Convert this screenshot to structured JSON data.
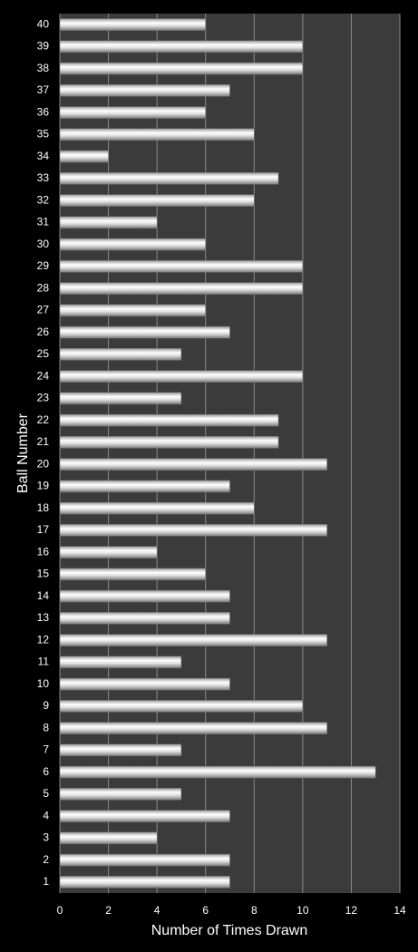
{
  "chart_data": {
    "type": "bar",
    "orientation": "horizontal",
    "x_label": "Number of Times Drawn",
    "y_label": "Ball Number",
    "categories": [
      "1",
      "2",
      "3",
      "4",
      "5",
      "6",
      "7",
      "8",
      "9",
      "10",
      "11",
      "12",
      "13",
      "14",
      "15",
      "16",
      "17",
      "18",
      "19",
      "20",
      "21",
      "22",
      "23",
      "24",
      "25",
      "26",
      "27",
      "28",
      "29",
      "30",
      "31",
      "32",
      "33",
      "34",
      "35",
      "36",
      "37",
      "38",
      "39",
      "40"
    ],
    "values": [
      7,
      7,
      4,
      7,
      5,
      13,
      5,
      11,
      10,
      7,
      5,
      11,
      7,
      7,
      6,
      4,
      11,
      8,
      7,
      11,
      9,
      9,
      5,
      10,
      5,
      7,
      6,
      10,
      10,
      6,
      4,
      8,
      9,
      2,
      8,
      6,
      7,
      10,
      10,
      6
    ],
    "color": "#e8e8e8",
    "xlim": [
      0,
      14
    ],
    "xticks": [
      0,
      2,
      4,
      6,
      8,
      10,
      12,
      14
    ],
    "grid": true
  }
}
